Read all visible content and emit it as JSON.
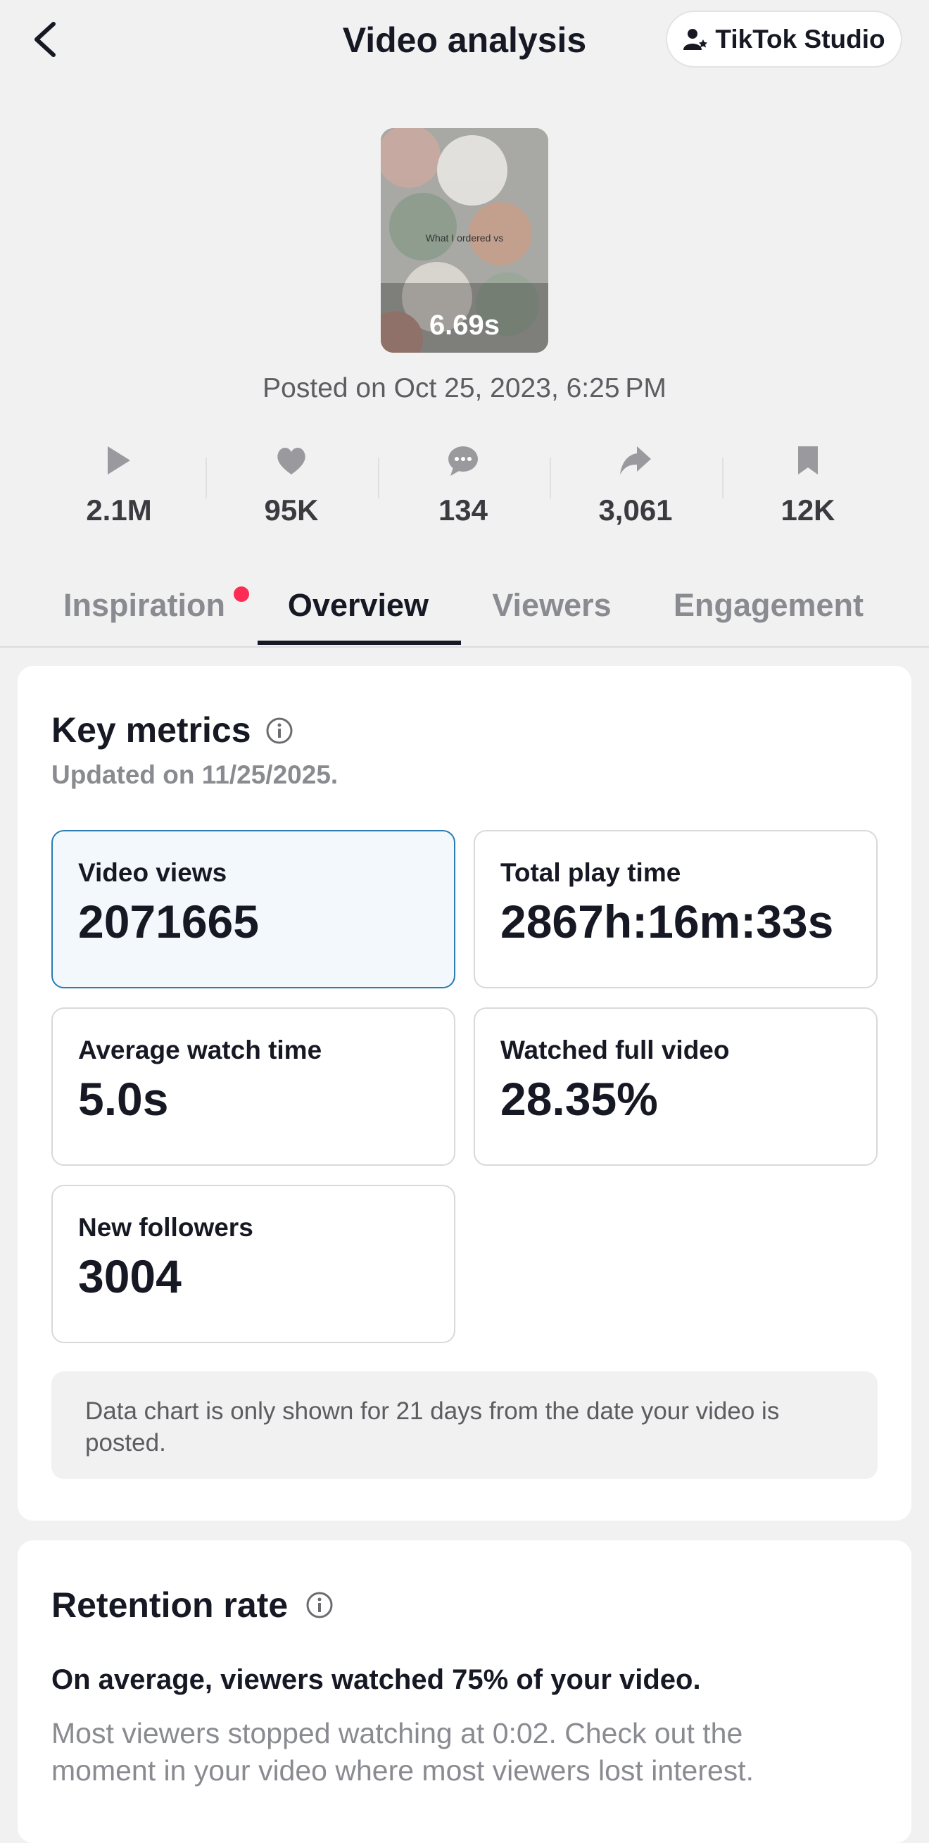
{
  "header": {
    "title": "Video analysis",
    "button": "TikTok Studio"
  },
  "video": {
    "overlay_text": "What I ordered vs",
    "duration": "6.69s",
    "posted": "Posted on Oct 25, 2023, 6:25 PM"
  },
  "stats": [
    {
      "icon": "play",
      "value": "2.1M"
    },
    {
      "icon": "like",
      "value": "95K"
    },
    {
      "icon": "comment",
      "value": "134"
    },
    {
      "icon": "share",
      "value": "3,061"
    },
    {
      "icon": "save",
      "value": "12K"
    }
  ],
  "tabs": [
    "Inspiration",
    "Overview",
    "Viewers",
    "Engagement"
  ],
  "key_metrics": {
    "title": "Key metrics",
    "updated": "Updated on 11/25/2025.",
    "metrics": [
      {
        "label": "Video views",
        "value": "2071665"
      },
      {
        "label": "Total play time",
        "value": "2867h:16m:33s"
      },
      {
        "label": "Average watch time",
        "value": "5.0s"
      },
      {
        "label": "Watched full video",
        "value": "28.35%"
      },
      {
        "label": "New followers",
        "value": "3004"
      }
    ],
    "note": "Data chart is only shown for 21 days from the date your video is posted."
  },
  "retention": {
    "title": "Retention rate",
    "summary": "On average, viewers watched 75% of your video.",
    "detail": "Most viewers stopped watching at 0:02. Check out the moment in your video where most viewers lost interest."
  }
}
